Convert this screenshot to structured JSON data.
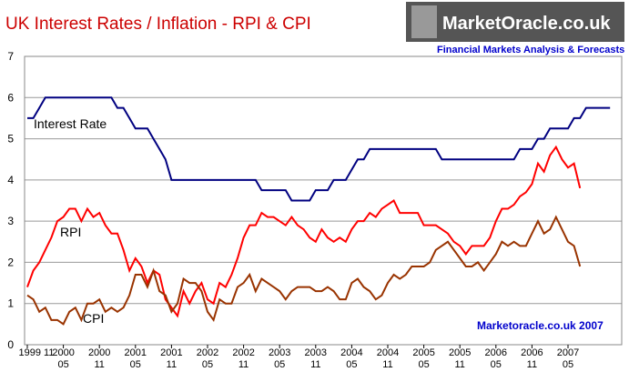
{
  "chart_data": {
    "type": "line",
    "title": "UK Interest Rates / Inflation - RPI & CPI",
    "logo": "MarketOracle.co.uk",
    "subtitle": "Financial Markets Analysis & Forecasts",
    "annotation": "Marketoracle.co.uk 2007",
    "categories": [
      "1999 11",
      null,
      null,
      null,
      null,
      null,
      "2000\n05",
      null,
      null,
      null,
      null,
      null,
      "2000\n11",
      null,
      null,
      null,
      null,
      null,
      "2001\n05",
      null,
      null,
      null,
      null,
      null,
      "2001\n11",
      null,
      null,
      null,
      null,
      null,
      "2002\n05",
      null,
      null,
      null,
      null,
      null,
      "2002\n11",
      null,
      null,
      null,
      null,
      null,
      "2003\n05",
      null,
      null,
      null,
      null,
      null,
      "2003\n11",
      null,
      null,
      null,
      null,
      null,
      "2004\n05",
      null,
      null,
      null,
      null,
      null,
      "2004\n11",
      null,
      null,
      null,
      null,
      null,
      "2005\n05",
      null,
      null,
      null,
      null,
      null,
      "2005\n11",
      null,
      null,
      null,
      null,
      null,
      "2006\n05",
      null,
      null,
      null,
      null,
      null,
      "2006\n11",
      null,
      null,
      null,
      null,
      null,
      "2007\n05",
      null,
      null,
      null,
      null,
      null,
      null,
      null
    ],
    "series": [
      {
        "name": "Interest Rate",
        "color": "#000080",
        "values": [
          5.5,
          5.5,
          5.75,
          6,
          6,
          6,
          6,
          6,
          6,
          6,
          6,
          6,
          6,
          6,
          6,
          5.75,
          5.75,
          5.5,
          5.25,
          5.25,
          5.25,
          5,
          4.75,
          4.5,
          4,
          4,
          4,
          4,
          4,
          4,
          4,
          4,
          4,
          4,
          4,
          4,
          4,
          4,
          4,
          3.75,
          3.75,
          3.75,
          3.75,
          3.75,
          3.5,
          3.5,
          3.5,
          3.5,
          3.75,
          3.75,
          3.75,
          4,
          4,
          4,
          4.25,
          4.5,
          4.5,
          4.75,
          4.75,
          4.75,
          4.75,
          4.75,
          4.75,
          4.75,
          4.75,
          4.75,
          4.75,
          4.75,
          4.75,
          4.5,
          4.5,
          4.5,
          4.5,
          4.5,
          4.5,
          4.5,
          4.5,
          4.5,
          4.5,
          4.5,
          4.5,
          4.5,
          4.75,
          4.75,
          4.75,
          5,
          5,
          5.25,
          5.25,
          5.25,
          5.25,
          5.5,
          5.5,
          5.75,
          5.75,
          5.75,
          5.75,
          5.75
        ]
      },
      {
        "name": "RPI",
        "color": "#ff0000",
        "values": [
          1.4,
          1.8,
          2.0,
          2.3,
          2.6,
          3.0,
          3.1,
          3.3,
          3.3,
          3.0,
          3.3,
          3.1,
          3.2,
          2.9,
          2.7,
          2.7,
          2.3,
          1.8,
          2.1,
          1.9,
          1.5,
          1.8,
          1.7,
          1.1,
          0.9,
          0.7,
          1.3,
          1.0,
          1.3,
          1.5,
          1.1,
          1.0,
          1.5,
          1.4,
          1.7,
          2.1,
          2.6,
          2.9,
          2.9,
          3.2,
          3.1,
          3.1,
          3.0,
          2.9,
          3.1,
          2.9,
          2.8,
          2.6,
          2.5,
          2.8,
          2.6,
          2.5,
          2.6,
          2.5,
          2.8,
          3.0,
          3.0,
          3.2,
          3.1,
          3.3,
          3.4,
          3.5,
          3.2,
          3.2,
          3.2,
          3.2,
          2.9,
          2.9,
          2.9,
          2.8,
          2.7,
          2.5,
          2.4,
          2.2,
          2.4,
          2.4,
          2.4,
          2.6,
          3.0,
          3.3,
          3.3,
          3.4,
          3.6,
          3.7,
          3.9,
          4.4,
          4.2,
          4.6,
          4.8,
          4.5,
          4.3,
          4.4,
          3.8,
          null,
          null,
          null,
          null,
          null
        ]
      },
      {
        "name": "CPI",
        "color": "#993300",
        "values": [
          1.2,
          1.1,
          0.8,
          0.9,
          0.6,
          0.6,
          0.5,
          0.8,
          0.9,
          0.6,
          1.0,
          1.0,
          1.1,
          0.8,
          0.9,
          0.8,
          0.9,
          1.2,
          1.7,
          1.7,
          1.4,
          1.8,
          1.3,
          1.2,
          0.8,
          1.0,
          1.6,
          1.5,
          1.5,
          1.3,
          0.8,
          0.6,
          1.1,
          1.0,
          1.0,
          1.4,
          1.5,
          1.7,
          1.3,
          1.6,
          1.5,
          1.4,
          1.3,
          1.1,
          1.3,
          1.4,
          1.4,
          1.4,
          1.3,
          1.3,
          1.4,
          1.3,
          1.1,
          1.1,
          1.5,
          1.6,
          1.4,
          1.3,
          1.1,
          1.2,
          1.5,
          1.7,
          1.6,
          1.7,
          1.9,
          1.9,
          1.9,
          2.0,
          2.3,
          2.4,
          2.5,
          2.3,
          2.1,
          1.9,
          1.9,
          2.0,
          1.8,
          2.0,
          2.2,
          2.5,
          2.4,
          2.5,
          2.4,
          2.4,
          2.7,
          3.0,
          2.7,
          2.8,
          3.1,
          2.8,
          2.5,
          2.4,
          1.9,
          null,
          null,
          null,
          null,
          null
        ]
      }
    ],
    "ylim": [
      0,
      7
    ],
    "yticks": [
      0,
      1,
      2,
      3,
      4,
      5,
      6,
      7
    ],
    "grid": true
  }
}
